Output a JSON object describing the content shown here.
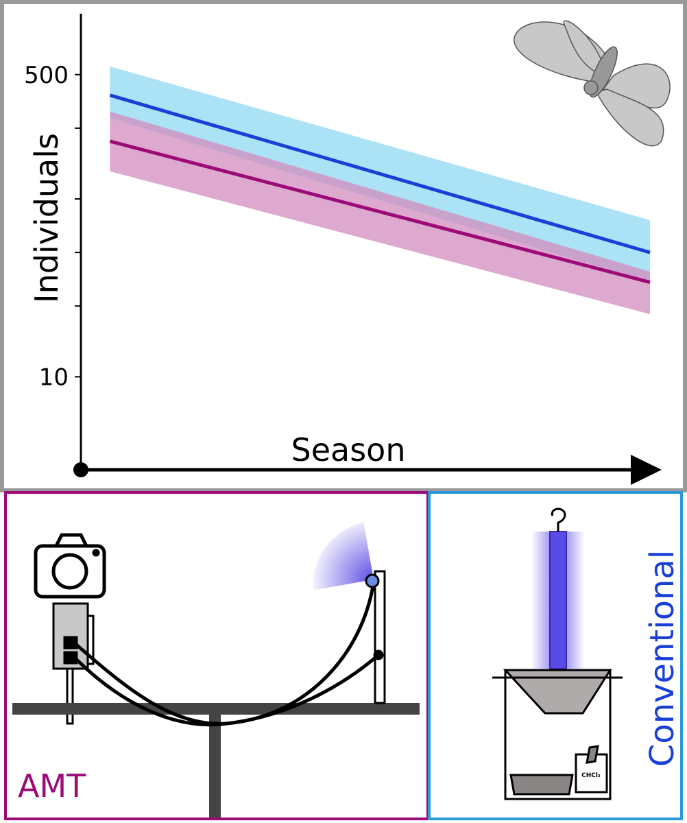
{
  "chart_data": {
    "type": "line",
    "y_label": "Individuals",
    "x_label": "Season",
    "log_y": true,
    "ylim": [
      3,
      1100
    ],
    "yticks": [
      10,
      500
    ],
    "yticks_minor": [
      25,
      50,
      100,
      250
    ],
    "xlim": [
      0,
      1
    ],
    "x": [
      0.05,
      0.98
    ],
    "series": [
      {
        "name": "Conventional",
        "color": "#1a3fd6",
        "band_color": "#8fd8f2",
        "values": [
          383,
          50
        ],
        "lower": [
          285,
          34
        ],
        "upper": [
          556,
          76
        ]
      },
      {
        "name": "AMT",
        "color": "#9c0a77",
        "band_color": "#d38cbd",
        "values": [
          211,
          34
        ],
        "lower": [
          143,
          22.5
        ],
        "upper": [
          310,
          39
        ]
      }
    ]
  }
}
